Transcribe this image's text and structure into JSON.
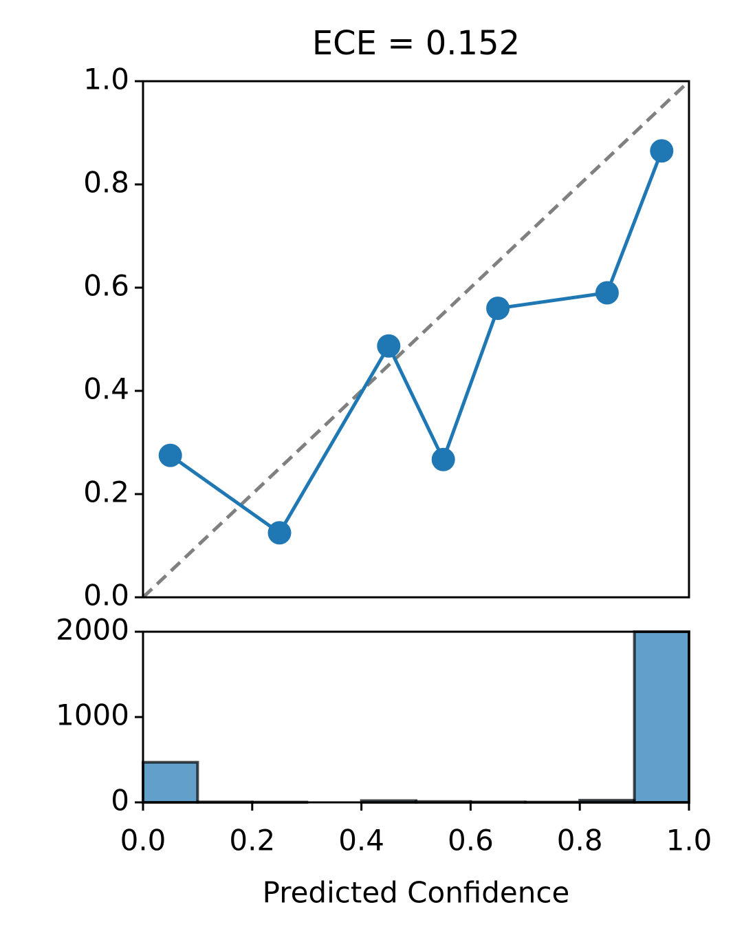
{
  "chart_data": [
    {
      "type": "line",
      "title": "ECE = 0.152",
      "x": [
        0.05,
        0.25,
        0.45,
        0.55,
        0.65,
        0.85,
        0.95
      ],
      "series": [
        {
          "color": "#1f77b4",
          "values": [
            0.275,
            0.125,
            0.487,
            0.267,
            0.56,
            0.59,
            0.865
          ]
        }
      ],
      "xlim": [
        0,
        1
      ],
      "ylim": [
        0,
        1
      ],
      "yticks": [
        {
          "value": 0,
          "label": "0.0"
        },
        0.2,
        0.4,
        0.6,
        0.8,
        {
          "value": 1,
          "label": "1.0"
        }
      ],
      "reference_color": "#808080"
    },
    {
      "type": "histogram",
      "xlabel": "Predicted Confidence",
      "bins": [
        0,
        0.1,
        0.2,
        0.3,
        0.4,
        0.5,
        0.6,
        0.7,
        0.8,
        0.9,
        1
      ],
      "values": [
        470,
        5,
        3,
        0,
        20,
        10,
        5,
        3,
        25,
        2000
      ],
      "color": "#1f77b4",
      "xlim": [
        0,
        1
      ],
      "ylim": [
        0,
        2000
      ],
      "xticks": [
        {
          "value": 0,
          "label": "0.0"
        },
        0.2,
        0.4,
        0.6,
        0.8,
        {
          "value": 1,
          "label": "1.0"
        }
      ],
      "yticks": [
        0,
        1000,
        2000
      ]
    }
  ]
}
